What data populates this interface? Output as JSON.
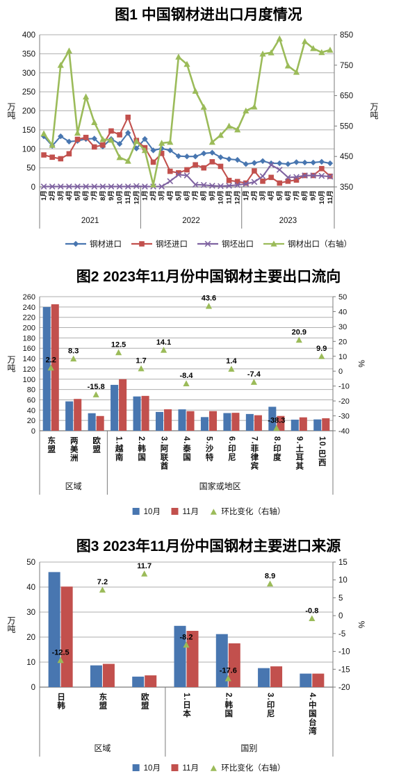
{
  "page": {
    "background": "#ffffff"
  },
  "colors": {
    "blue": "#4876B0",
    "red": "#C2504D",
    "green": "#9BBB59",
    "purple": "#7F63A1",
    "axis_line": "#7a7a7a",
    "gridline": "#aeaeae",
    "text": "#111111"
  },
  "chart_data": [
    {
      "id": "fig1",
      "type": "line",
      "title": "图1 中国钢材进出口月度情况",
      "left_axis": {
        "title": "万吨",
        "min": 0,
        "max": 400,
        "step": 50
      },
      "right_axis": {
        "title": "万吨",
        "min": 350,
        "max": 850,
        "step": 100
      },
      "grid": true,
      "legend_position": "bottom",
      "x_year_groups": [
        {
          "label": "2021",
          "count": 12
        },
        {
          "label": "2022",
          "count": 12
        },
        {
          "label": "2023",
          "count": 11
        }
      ],
      "x_labels": [
        "1月",
        "2月",
        "3月",
        "4月",
        "5月",
        "6月",
        "7月",
        "8月",
        "9月",
        "10月",
        "11月",
        "12月",
        "1月",
        "2月",
        "3月",
        "4月",
        "5月",
        "6月",
        "7月",
        "8月",
        "9月",
        "10月",
        "11月",
        "12月",
        "1月",
        "2月",
        "3月",
        "4月",
        "5月",
        "6月",
        "7月",
        "8月",
        "9月",
        "10月",
        "11月"
      ],
      "series": [
        {
          "name": "钢材进口",
          "axis": "left",
          "marker": "diamond",
          "color_key": "blue",
          "values": [
            133,
            108,
            133,
            119,
            121,
            126,
            127,
            106,
            126,
            113,
            142,
            101,
            126,
            96,
            101,
            96,
            81,
            80,
            80,
            88,
            90,
            78,
            73,
            71,
            60,
            63,
            68,
            62,
            62,
            60,
            65,
            64,
            64,
            66,
            62
          ]
        },
        {
          "name": "钢坯进口",
          "axis": "left",
          "marker": "square",
          "color_key": "red",
          "values": [
            84,
            78,
            74,
            87,
            125,
            130,
            105,
            110,
            147,
            137,
            183,
            122,
            103,
            65,
            88,
            41,
            37,
            45,
            58,
            50,
            66,
            54,
            17,
            14,
            10,
            42,
            15,
            25,
            10,
            15,
            18,
            30,
            30,
            48,
            28
          ]
        },
        {
          "name": "钢坯出口",
          "axis": "left",
          "marker": "x",
          "color_key": "purple",
          "values": [
            1,
            1,
            1,
            1,
            1,
            1,
            1,
            1,
            1,
            1,
            1,
            2,
            1,
            1,
            1,
            15,
            32,
            30,
            6,
            5,
            3,
            2,
            3,
            5,
            8,
            13,
            28,
            58,
            45,
            25,
            26,
            30,
            30,
            29,
            27
          ]
        },
        {
          "name": "钢材出口（右轴）",
          "axis": "right",
          "marker": "triangle",
          "color_key": "green",
          "values": [
            525,
            487,
            750,
            797,
            527,
            646,
            562,
            506,
            504,
            447,
            435,
            500,
            470,
            357,
            494,
            497,
            777,
            753,
            665,
            612,
            497,
            520,
            550,
            538,
            600,
            613,
            787,
            791,
            837,
            748,
            727,
            828,
            805,
            792,
            800
          ]
        }
      ]
    },
    {
      "id": "fig2",
      "type": "bar",
      "title": "图2 2023年11月份中国钢材主要出口流向",
      "left_axis": {
        "title": "万吨",
        "min": 0,
        "max": 260,
        "step": 20
      },
      "right_axis": {
        "title": "%",
        "min": -40,
        "max": 50,
        "step": 10
      },
      "grid": true,
      "legend_position": "bottom",
      "categories": [
        "东盟",
        "两美洲",
        "欧盟",
        "1.越南",
        "2.韩国",
        "3.阿联酋",
        "4.泰国",
        "5.沙特",
        "6.印尼",
        "7.菲律宾",
        "8.印度",
        "9.土耳其",
        "10.巴西"
      ],
      "category_groups": [
        {
          "label": "区域",
          "count": 3
        },
        {
          "label": "国家或地区",
          "count": 10
        }
      ],
      "series": [
        {
          "name": "10月",
          "color_key": "blue",
          "values": [
            240,
            57,
            34,
            89,
            66.5,
            36.5,
            41.5,
            26.5,
            34.3,
            32.5,
            46.5,
            21.5,
            22
          ]
        },
        {
          "name": "11月",
          "color_key": "red",
          "values": [
            245.3,
            61.7,
            28.6,
            100,
            67.6,
            41.6,
            38,
            38.1,
            34.8,
            30.1,
            28.7,
            26,
            24.2
          ]
        }
      ],
      "marker_series": {
        "name": "环比变化（右轴）",
        "color_key": "green",
        "values": [
          2.2,
          8.3,
          -15.8,
          12.5,
          1.7,
          14.1,
          -8.4,
          43.6,
          1.4,
          -7.4,
          -38.3,
          20.9,
          9.9
        ]
      }
    },
    {
      "id": "fig3",
      "type": "bar",
      "title": "图3 2023年11月份中国钢材主要进口来源",
      "left_axis": {
        "title": "万吨",
        "min": 0,
        "max": 50,
        "step": 10
      },
      "right_axis": {
        "title": "%",
        "min": -20,
        "max": 15,
        "step": 5
      },
      "grid": true,
      "legend_position": "bottom",
      "categories": [
        "日韩",
        "东盟",
        "欧盟",
        "1.日本",
        "2.韩国",
        "3.印尼",
        "4.中国台湾"
      ],
      "category_groups": [
        {
          "label": "区域",
          "count": 3
        },
        {
          "label": "国别",
          "count": 4
        }
      ],
      "series": [
        {
          "name": "10月",
          "color_key": "blue",
          "values": [
            46,
            8.7,
            4.2,
            24.5,
            21.2,
            7.6,
            5.4
          ]
        },
        {
          "name": "11月",
          "color_key": "red",
          "values": [
            40.2,
            9.3,
            4.7,
            22.5,
            17.5,
            8.3,
            5.4
          ]
        }
      ],
      "marker_series": {
        "name": "环比变化（右轴）",
        "color_key": "green",
        "values": [
          -12.5,
          7.2,
          11.7,
          -8.2,
          -17.6,
          8.9,
          -0.8
        ]
      }
    }
  ]
}
